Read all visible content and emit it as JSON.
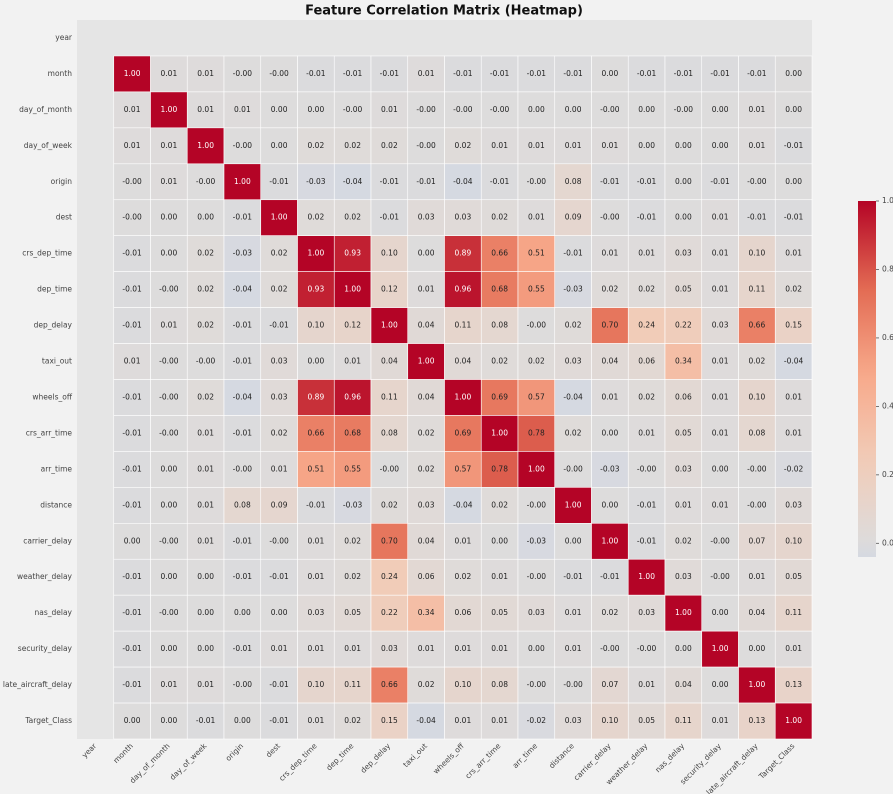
{
  "chart_data": {
    "type": "heatmap",
    "title": "Feature Correlation Matrix (Heatmap)",
    "categories": [
      "year",
      "month",
      "day_of_month",
      "day_of_week",
      "origin",
      "dest",
      "crs_dep_time",
      "dep_time",
      "dep_delay",
      "taxi_out",
      "wheels_off",
      "crs_arr_time",
      "arr_time",
      "distance",
      "carrier_delay",
      "weather_delay",
      "nas_delay",
      "security_delay",
      "late_aircraft_delay",
      "Target_Class"
    ],
    "values": [
      [
        null,
        null,
        null,
        null,
        null,
        null,
        null,
        null,
        null,
        null,
        null,
        null,
        null,
        null,
        null,
        null,
        null,
        null,
        null,
        null
      ],
      [
        null,
        1,
        0.01,
        0.01,
        0,
        0,
        -0.01,
        -0.01,
        -0.01,
        0.01,
        -0.01,
        -0.01,
        -0.01,
        -0.01,
        0,
        -0.01,
        -0.01,
        -0.01,
        -0.01,
        0
      ],
      [
        null,
        0.01,
        1,
        0.01,
        0.01,
        0,
        0,
        0,
        0.01,
        0,
        0,
        0,
        0,
        0,
        0,
        0,
        0,
        0,
        0.01,
        0
      ],
      [
        null,
        0.01,
        0.01,
        1,
        0,
        0,
        0.02,
        0.02,
        0.02,
        0,
        0.02,
        0.01,
        0.01,
        0.01,
        0.01,
        0,
        0,
        0,
        0.01,
        -0.01
      ],
      [
        null,
        0,
        0.01,
        0,
        1,
        -0.01,
        -0.03,
        -0.04,
        -0.01,
        -0.01,
        -0.04,
        -0.01,
        0,
        0.08,
        -0.01,
        -0.01,
        0,
        -0.01,
        0,
        0
      ],
      [
        null,
        0,
        0,
        0,
        -0.01,
        1,
        0.02,
        0.02,
        -0.01,
        0.03,
        0.03,
        0.02,
        0.01,
        0.09,
        0,
        -0.01,
        0,
        0.01,
        -0.01,
        -0.01
      ],
      [
        null,
        -0.01,
        0,
        0.02,
        -0.03,
        0.02,
        1,
        0.93,
        0.1,
        0,
        0.89,
        0.66,
        0.51,
        -0.01,
        0.01,
        0.01,
        0.03,
        0.01,
        0.1,
        0.01
      ],
      [
        null,
        -0.01,
        0,
        0.02,
        -0.04,
        0.02,
        0.93,
        1,
        0.12,
        0.01,
        0.96,
        0.68,
        0.55,
        -0.03,
        0.02,
        0.02,
        0.05,
        0.01,
        0.11,
        0.02
      ],
      [
        null,
        -0.01,
        0.01,
        0.02,
        -0.01,
        -0.01,
        0.1,
        0.12,
        1,
        0.04,
        0.11,
        0.08,
        0,
        0.02,
        0.7,
        0.24,
        0.22,
        0.03,
        0.66,
        0.15
      ],
      [
        null,
        0.01,
        0,
        0,
        -0.01,
        0.03,
        0,
        0.01,
        0.04,
        1,
        0.04,
        0.02,
        0.02,
        0.03,
        0.04,
        0.06,
        0.34,
        0.01,
        0.02,
        -0.04
      ],
      [
        null,
        -0.01,
        0,
        0.02,
        -0.04,
        0.03,
        0.89,
        0.96,
        0.11,
        0.04,
        1,
        0.69,
        0.57,
        -0.04,
        0.01,
        0.02,
        0.06,
        0.01,
        0.1,
        0.01
      ],
      [
        null,
        -0.01,
        0,
        0.01,
        -0.01,
        0.02,
        0.66,
        0.68,
        0.08,
        0.02,
        0.69,
        1,
        0.78,
        0.02,
        0,
        0.01,
        0.05,
        0.01,
        0.08,
        0.01
      ],
      [
        null,
        -0.01,
        0,
        0.01,
        0,
        0.01,
        0.51,
        0.55,
        0,
        0.02,
        0.57,
        0.78,
        1,
        0,
        -0.03,
        0,
        0.03,
        0,
        0,
        -0.02
      ],
      [
        null,
        -0.01,
        0,
        0.01,
        0.08,
        0.09,
        -0.01,
        -0.03,
        0.02,
        0.03,
        -0.04,
        0.02,
        0,
        1,
        0,
        -0.01,
        0.01,
        0.01,
        0,
        0.03
      ],
      [
        null,
        0,
        0,
        0.01,
        -0.01,
        0,
        0.01,
        0.02,
        0.7,
        0.04,
        0.01,
        0,
        -0.03,
        0,
        1,
        -0.01,
        0.02,
        0,
        0.07,
        0.1
      ],
      [
        null,
        -0.01,
        0,
        0,
        -0.01,
        -0.01,
        0.01,
        0.02,
        0.24,
        0.06,
        0.02,
        0.01,
        0,
        -0.01,
        -0.01,
        1,
        0.03,
        0,
        0.01,
        0.05
      ],
      [
        null,
        -0.01,
        0,
        0,
        0,
        0,
        0.03,
        0.05,
        0.22,
        0.34,
        0.06,
        0.05,
        0.03,
        0.01,
        0.02,
        0.03,
        1,
        0,
        0.04,
        0.11
      ],
      [
        null,
        -0.01,
        0,
        0,
        -0.01,
        0.01,
        0.01,
        0.01,
        0.03,
        0.01,
        0.01,
        0.01,
        0,
        0.01,
        0,
        0,
        0,
        1,
        0,
        0.01
      ],
      [
        null,
        -0.01,
        0.01,
        0.01,
        0,
        -0.01,
        0.1,
        0.11,
        0.66,
        0.02,
        0.1,
        0.08,
        0,
        0,
        0.07,
        0.01,
        0.04,
        0,
        1,
        0.13
      ],
      [
        null,
        0,
        0,
        -0.01,
        0,
        -0.01,
        0.01,
        0.02,
        0.15,
        -0.04,
        0.01,
        0.01,
        -0.02,
        0.03,
        0.1,
        0.05,
        0.11,
        0.01,
        0.13,
        1
      ]
    ],
    "value_labels": [
      [
        null,
        null,
        null,
        null,
        null,
        null,
        null,
        null,
        null,
        null,
        null,
        null,
        null,
        null,
        null,
        null,
        null,
        null,
        null,
        null
      ],
      [
        null,
        "1.00",
        "0.01",
        "0.01",
        "-0.00",
        "-0.00",
        "-0.01",
        "-0.01",
        "-0.01",
        "0.01",
        "-0.01",
        "-0.01",
        "-0.01",
        "-0.01",
        "0.00",
        "-0.01",
        "-0.01",
        "-0.01",
        "-0.01",
        "0.00"
      ],
      [
        null,
        "0.01",
        "1.00",
        "0.01",
        "0.01",
        "0.00",
        "0.00",
        "-0.00",
        "0.01",
        "-0.00",
        "-0.00",
        "-0.00",
        "0.00",
        "0.00",
        "-0.00",
        "0.00",
        "-0.00",
        "0.00",
        "0.01",
        "0.00"
      ],
      [
        null,
        "0.01",
        "0.01",
        "1.00",
        "-0.00",
        "0.00",
        "0.02",
        "0.02",
        "0.02",
        "-0.00",
        "0.02",
        "0.01",
        "0.01",
        "0.01",
        "0.01",
        "0.00",
        "0.00",
        "0.00",
        "0.01",
        "-0.01"
      ],
      [
        null,
        "-0.00",
        "0.01",
        "-0.00",
        "1.00",
        "-0.01",
        "-0.03",
        "-0.04",
        "-0.01",
        "-0.01",
        "-0.04",
        "-0.01",
        "-0.00",
        "0.08",
        "-0.01",
        "-0.01",
        "0.00",
        "-0.01",
        "-0.00",
        "0.00"
      ],
      [
        null,
        "-0.00",
        "0.00",
        "0.00",
        "-0.01",
        "1.00",
        "0.02",
        "0.02",
        "-0.01",
        "0.03",
        "0.03",
        "0.02",
        "0.01",
        "0.09",
        "-0.00",
        "-0.01",
        "0.00",
        "0.01",
        "-0.01",
        "-0.01"
      ],
      [
        null,
        "-0.01",
        "0.00",
        "0.02",
        "-0.03",
        "0.02",
        "1.00",
        "0.93",
        "0.10",
        "0.00",
        "0.89",
        "0.66",
        "0.51",
        "-0.01",
        "0.01",
        "0.01",
        "0.03",
        "0.01",
        "0.10",
        "0.01"
      ],
      [
        null,
        "-0.01",
        "-0.00",
        "0.02",
        "-0.04",
        "0.02",
        "0.93",
        "1.00",
        "0.12",
        "0.01",
        "0.96",
        "0.68",
        "0.55",
        "-0.03",
        "0.02",
        "0.02",
        "0.05",
        "0.01",
        "0.11",
        "0.02"
      ],
      [
        null,
        "-0.01",
        "0.01",
        "0.02",
        "-0.01",
        "-0.01",
        "0.10",
        "0.12",
        "1.00",
        "0.04",
        "0.11",
        "0.08",
        "-0.00",
        "0.02",
        "0.70",
        "0.24",
        "0.22",
        "0.03",
        "0.66",
        "0.15"
      ],
      [
        null,
        "0.01",
        "-0.00",
        "-0.00",
        "-0.01",
        "0.03",
        "0.00",
        "0.01",
        "0.04",
        "1.00",
        "0.04",
        "0.02",
        "0.02",
        "0.03",
        "0.04",
        "0.06",
        "0.34",
        "0.01",
        "0.02",
        "-0.04"
      ],
      [
        null,
        "-0.01",
        "-0.00",
        "0.02",
        "-0.04",
        "0.03",
        "0.89",
        "0.96",
        "0.11",
        "0.04",
        "1.00",
        "0.69",
        "0.57",
        "-0.04",
        "0.01",
        "0.02",
        "0.06",
        "0.01",
        "0.10",
        "0.01"
      ],
      [
        null,
        "-0.01",
        "-0.00",
        "0.01",
        "-0.01",
        "0.02",
        "0.66",
        "0.68",
        "0.08",
        "0.02",
        "0.69",
        "1.00",
        "0.78",
        "0.02",
        "0.00",
        "0.01",
        "0.05",
        "0.01",
        "0.08",
        "0.01"
      ],
      [
        null,
        "-0.01",
        "0.00",
        "0.01",
        "-0.00",
        "0.01",
        "0.51",
        "0.55",
        "-0.00",
        "0.02",
        "0.57",
        "0.78",
        "1.00",
        "-0.00",
        "-0.03",
        "-0.00",
        "0.03",
        "0.00",
        "-0.00",
        "-0.02"
      ],
      [
        null,
        "-0.01",
        "0.00",
        "0.01",
        "0.08",
        "0.09",
        "-0.01",
        "-0.03",
        "0.02",
        "0.03",
        "-0.04",
        "0.02",
        "-0.00",
        "1.00",
        "0.00",
        "-0.01",
        "0.01",
        "0.01",
        "-0.00",
        "0.03"
      ],
      [
        null,
        "0.00",
        "-0.00",
        "0.01",
        "-0.01",
        "-0.00",
        "0.01",
        "0.02",
        "0.70",
        "0.04",
        "0.01",
        "0.00",
        "-0.03",
        "0.00",
        "1.00",
        "-0.01",
        "0.02",
        "-0.00",
        "0.07",
        "0.10"
      ],
      [
        null,
        "-0.01",
        "0.00",
        "0.00",
        "-0.01",
        "-0.01",
        "0.01",
        "0.02",
        "0.24",
        "0.06",
        "0.02",
        "0.01",
        "-0.00",
        "-0.01",
        "-0.01",
        "1.00",
        "0.03",
        "-0.00",
        "0.01",
        "0.05"
      ],
      [
        null,
        "-0.01",
        "-0.00",
        "0.00",
        "0.00",
        "0.00",
        "0.03",
        "0.05",
        "0.22",
        "0.34",
        "0.06",
        "0.05",
        "0.03",
        "0.01",
        "0.02",
        "0.03",
        "1.00",
        "0.00",
        "0.04",
        "0.11"
      ],
      [
        null,
        "-0.01",
        "0.00",
        "0.00",
        "-0.01",
        "0.01",
        "0.01",
        "0.01",
        "0.03",
        "0.01",
        "0.01",
        "0.01",
        "0.00",
        "0.01",
        "-0.00",
        "-0.00",
        "0.00",
        "1.00",
        "0.00",
        "0.01"
      ],
      [
        null,
        "-0.01",
        "0.01",
        "0.01",
        "-0.00",
        "-0.01",
        "0.10",
        "0.11",
        "0.66",
        "0.02",
        "0.10",
        "0.08",
        "-0.00",
        "-0.00",
        "0.07",
        "0.01",
        "0.04",
        "0.00",
        "1.00",
        "0.13"
      ],
      [
        null,
        "0.00",
        "0.00",
        "-0.01",
        "0.00",
        "-0.01",
        "0.01",
        "0.02",
        "0.15",
        "-0.04",
        "0.01",
        "0.01",
        "-0.02",
        "0.03",
        "0.10",
        "0.05",
        "0.11",
        "0.01",
        "0.13",
        "1.00"
      ]
    ],
    "cmap": "coolwarm",
    "center": 0,
    "clim": [
      -0.04,
      1
    ],
    "cticks": [
      {
        "value": 0,
        "label": "0.0"
      },
      0.2,
      0.4,
      0.6,
      0.8,
      {
        "value": 1,
        "label": "1.0"
      }
    ]
  }
}
